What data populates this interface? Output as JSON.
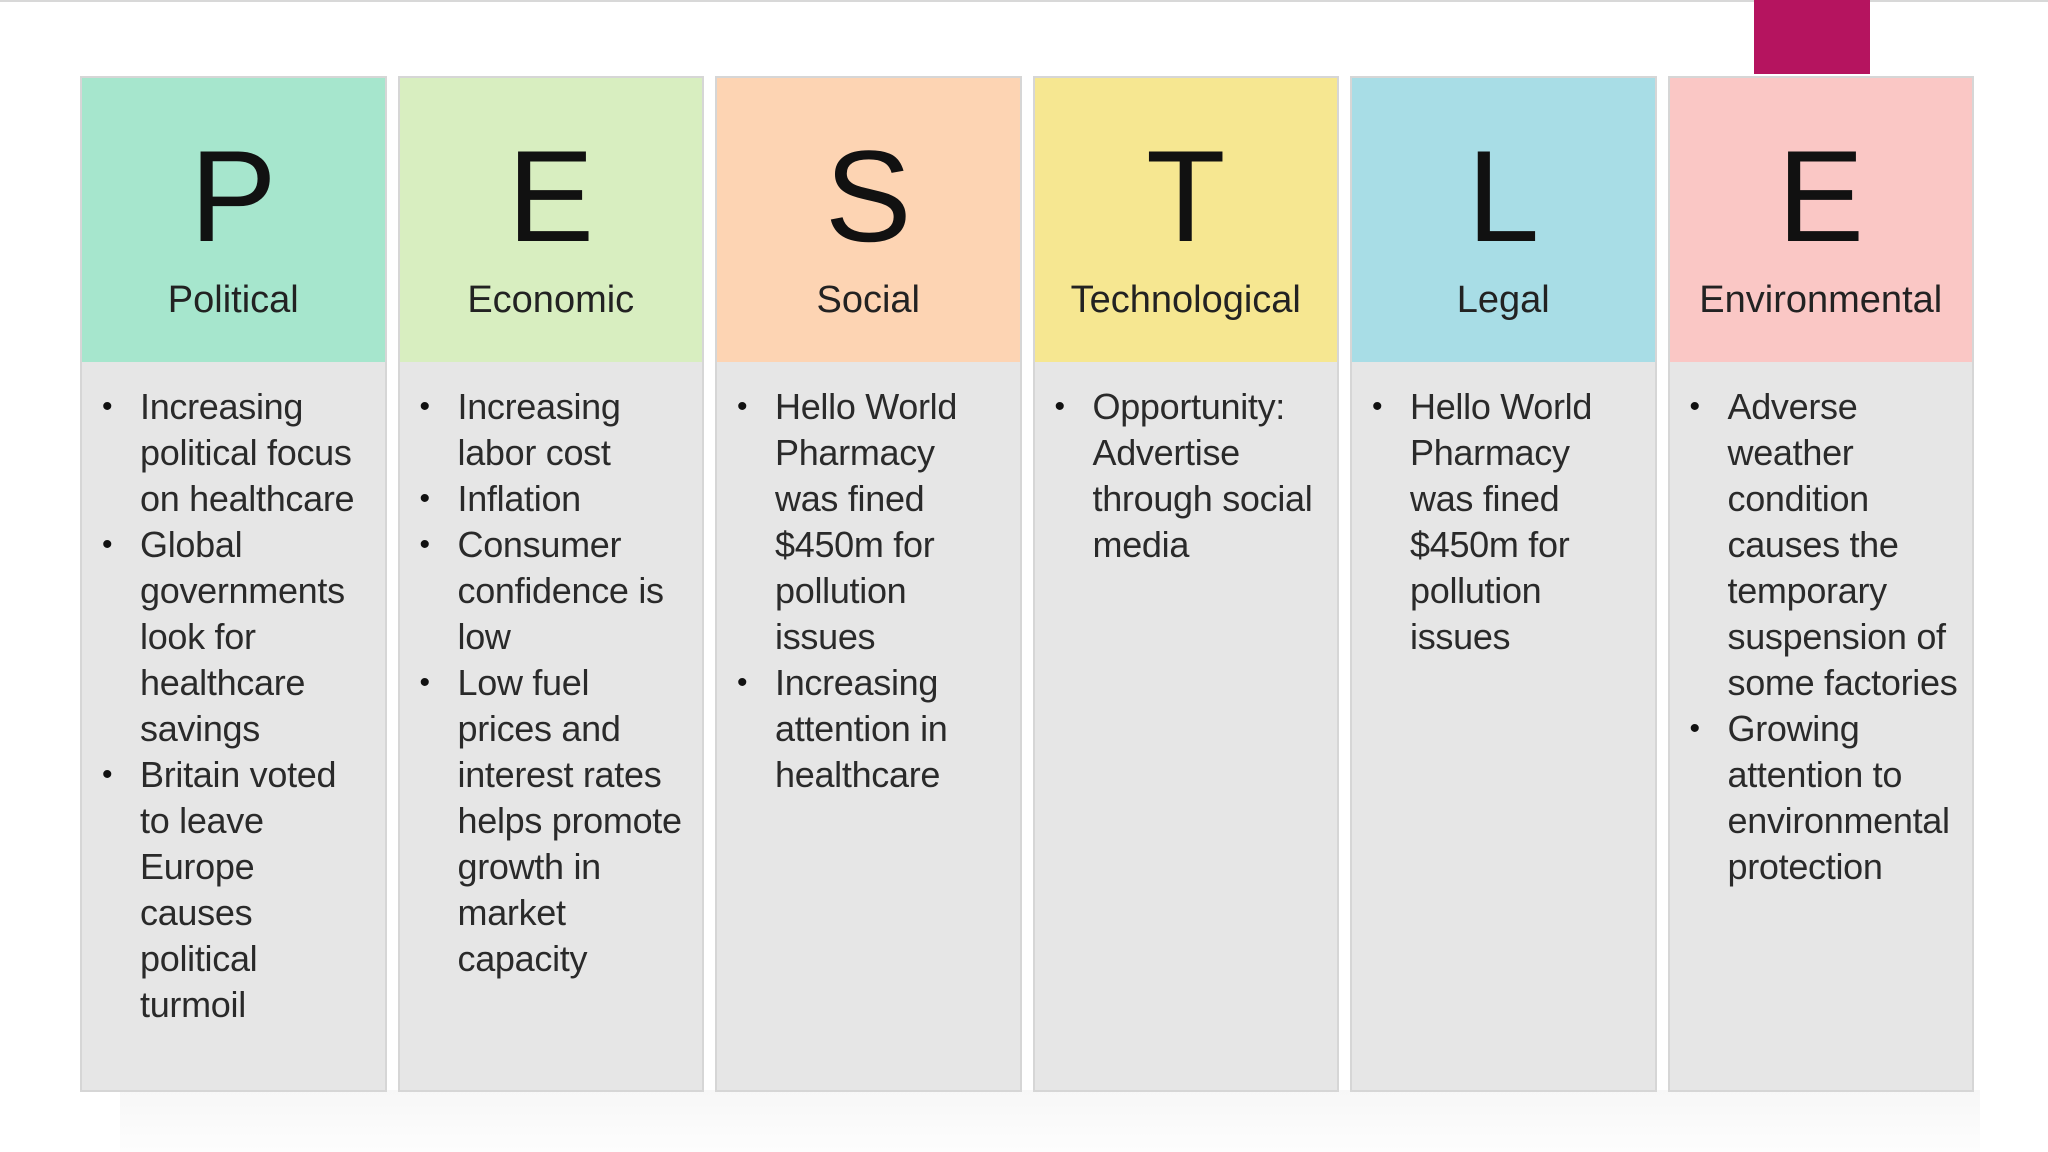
{
  "colors": {
    "accent": "#b5145f",
    "body_bg": "#e6e6e6",
    "political": "#a6e6cd",
    "economic": "#d8eec0",
    "social": "#fdd4b3",
    "technological": "#f6e791",
    "legal": "#a8dde6",
    "environmental": "#fac7c5"
  },
  "columns": [
    {
      "letter": "P",
      "title": "Political",
      "color": "#a6e6cd",
      "items": [
        "Increasing political focus on healthcare",
        "Global governments look for healthcare savings",
        "Britain voted to leave Europe causes political turmoil"
      ]
    },
    {
      "letter": "E",
      "title": "Economic",
      "color": "#d8eec0",
      "items": [
        "Increasing labor cost",
        "Inflation",
        "Consumer confidence is low",
        "Low fuel prices and interest rates helps promote growth in market capacity"
      ]
    },
    {
      "letter": "S",
      "title": "Social",
      "color": "#fdd4b3",
      "items": [
        "Hello World Pharmacy was fined $450m for pollution issues",
        "Increasing attention in healthcare"
      ]
    },
    {
      "letter": "T",
      "title": "Technological",
      "color": "#f6e791",
      "items": [
        "Opportunity: Advertise through social media"
      ]
    },
    {
      "letter": "L",
      "title": "Legal",
      "color": "#a8dde6",
      "items": [
        "Hello World Pharmacy was fined $450m for pollution issues"
      ]
    },
    {
      "letter": "E",
      "title": "Environmental",
      "color": "#fac7c5",
      "items": [
        "Adverse weather condition causes the temporary suspension of some factories",
        "Growing attention to environmental protection"
      ]
    }
  ]
}
